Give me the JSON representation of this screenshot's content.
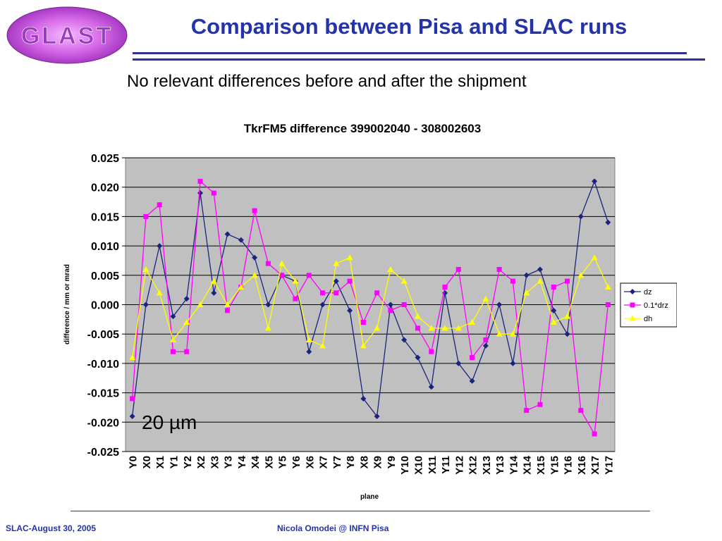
{
  "slide": {
    "logo_text": "GLAST",
    "title": "Comparison between Pisa and SLAC runs",
    "subtitle": "No relevant differences before and after the shipment",
    "annotation": "20 µm",
    "footer_left": "SLAC-August 30, 2005",
    "footer_center": "Nicola Omodei @ INFN Pisa"
  },
  "chart_data": {
    "type": "line",
    "title": "TkrFM5 difference 399002040 - 308002603",
    "xlabel": "plane",
    "ylabel": "difference / mm or mrad",
    "ylim": [
      -0.025,
      0.025
    ],
    "yticks": [
      "0.025",
      "0.020",
      "0.015",
      "0.010",
      "0.005",
      "0.000",
      "-0.005",
      "-0.010",
      "-0.015",
      "-0.020",
      "-0.025"
    ],
    "grid": true,
    "legend_position": "right",
    "plot_background": "#c0c0c0",
    "categories": [
      "Y0",
      "X0",
      "X1",
      "Y1",
      "Y2",
      "X2",
      "X3",
      "Y3",
      "Y4",
      "X4",
      "X5",
      "Y5",
      "Y6",
      "X6",
      "X7",
      "Y7",
      "Y8",
      "X8",
      "X9",
      "Y9",
      "Y10",
      "X10",
      "X11",
      "Y11",
      "Y12",
      "X12",
      "X13",
      "Y13",
      "Y14",
      "X14",
      "X15",
      "Y15",
      "Y16",
      "X16",
      "X17",
      "Y17"
    ],
    "series": [
      {
        "name": "dz",
        "color": "#1a237e",
        "marker": "diamond",
        "values": [
          -0.019,
          0.0,
          0.01,
          -0.002,
          0.001,
          0.019,
          0.002,
          0.012,
          0.011,
          0.008,
          0.0,
          0.005,
          0.004,
          -0.008,
          0.0,
          0.004,
          -0.001,
          -0.016,
          -0.019,
          0.0,
          -0.006,
          -0.009,
          -0.014,
          0.002,
          -0.01,
          -0.013,
          -0.007,
          0.0,
          -0.01,
          0.005,
          0.006,
          -0.001,
          -0.005,
          0.015,
          0.021,
          0.014
        ]
      },
      {
        "name": "0.1*drz",
        "color": "#ff00ff",
        "marker": "square",
        "values": [
          -0.016,
          0.015,
          0.017,
          -0.008,
          -0.008,
          0.021,
          0.019,
          -0.001,
          0.003,
          0.016,
          0.007,
          0.005,
          0.001,
          0.005,
          0.002,
          0.002,
          0.004,
          -0.003,
          0.002,
          -0.001,
          0.0,
          -0.004,
          -0.008,
          0.003,
          0.006,
          -0.009,
          -0.006,
          0.006,
          0.004,
          -0.018,
          -0.017,
          0.003,
          0.004,
          -0.018,
          -0.022,
          0.0
        ]
      },
      {
        "name": "dh",
        "color": "#ffff00",
        "marker": "triangle",
        "values": [
          -0.009,
          0.006,
          0.002,
          -0.006,
          -0.003,
          0.0,
          0.004,
          0.0,
          0.003,
          0.005,
          -0.004,
          0.007,
          0.004,
          -0.006,
          -0.007,
          0.007,
          0.008,
          -0.007,
          -0.004,
          0.006,
          0.004,
          -0.002,
          -0.004,
          -0.004,
          -0.004,
          -0.003,
          0.001,
          -0.005,
          -0.005,
          0.002,
          0.004,
          -0.003,
          -0.002,
          0.005,
          0.008,
          0.003
        ]
      }
    ]
  }
}
